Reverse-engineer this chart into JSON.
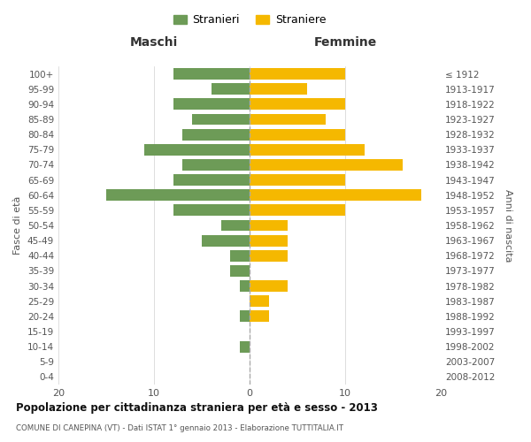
{
  "age_groups": [
    "0-4",
    "5-9",
    "10-14",
    "15-19",
    "20-24",
    "25-29",
    "30-34",
    "35-39",
    "40-44",
    "45-49",
    "50-54",
    "55-59",
    "60-64",
    "65-69",
    "70-74",
    "75-79",
    "80-84",
    "85-89",
    "90-94",
    "95-99",
    "100+"
  ],
  "birth_years": [
    "2008-2012",
    "2003-2007",
    "1998-2002",
    "1993-1997",
    "1988-1992",
    "1983-1987",
    "1978-1982",
    "1973-1977",
    "1968-1972",
    "1963-1967",
    "1958-1962",
    "1953-1957",
    "1948-1952",
    "1943-1947",
    "1938-1942",
    "1933-1937",
    "1928-1932",
    "1923-1927",
    "1918-1922",
    "1913-1917",
    "≤ 1912"
  ],
  "maschi": [
    8,
    4,
    8,
    6,
    7,
    11,
    7,
    8,
    15,
    8,
    3,
    5,
    2,
    2,
    1,
    0,
    1,
    0,
    1,
    0,
    0
  ],
  "femmine": [
    10,
    6,
    10,
    8,
    10,
    12,
    16,
    10,
    18,
    10,
    4,
    4,
    4,
    0,
    4,
    2,
    2,
    0,
    0,
    0,
    0
  ],
  "maschi_color": "#6d9b57",
  "femmine_color": "#f5b800",
  "title": "Popolazione per cittadinanza straniera per età e sesso - 2013",
  "subtitle": "COMUNE DI CANEPINA (VT) - Dati ISTAT 1° gennaio 2013 - Elaborazione TUTTITALIA.IT",
  "xlabel_left": "Maschi",
  "xlabel_right": "Femmine",
  "ylabel_left": "Fasce di età",
  "ylabel_right": "Anni di nascita",
  "legend_maschi": "Stranieri",
  "legend_femmine": "Straniere",
  "xlim": 20,
  "background_color": "#ffffff",
  "grid_color": "#d0d0d0"
}
